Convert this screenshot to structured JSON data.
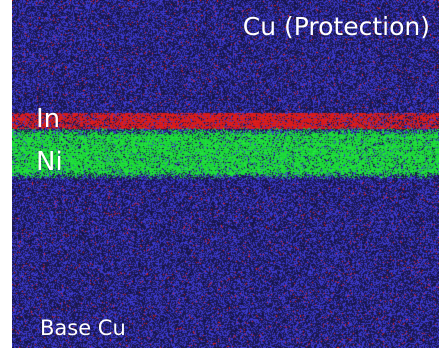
{
  "figure": {
    "labels": {
      "top_region": "Cu (Protection)",
      "indium_layer": "In",
      "nickel_layer": "Ni",
      "base_region": "Base Cu"
    },
    "colors": {
      "background": "#1d1b55",
      "copper_signal": "#3b3bd8",
      "indium_signal": "#e11d1d",
      "nickel_signal": "#1fe23d",
      "text": "#ffffff",
      "page": "#ffffff"
    }
  }
}
